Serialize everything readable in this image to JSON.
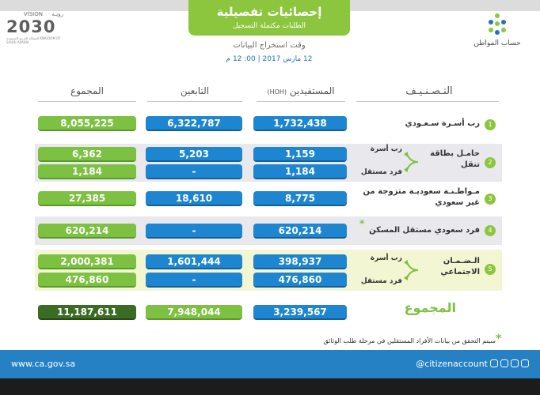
{
  "header": {
    "vision_ar": "رؤيـة",
    "vision_en": "VISION",
    "vision_year": "2030",
    "vision_sub": "المملكة العربية السعودية KINGDOM OF SAUDI ARABIA",
    "title": "إحصائيات تفصيلية",
    "subtitle": "الطلبات مكتملة التسجيل",
    "extract_label": "وقت استخراج البيانات",
    "extract_time": "12 مارس 2017 | 00: 12 م",
    "logo_name": "حساب المواطن"
  },
  "columns": {
    "category": "التـصـنـيـف",
    "beneficiaries": "المستفيدين",
    "beneficiaries_tag": "(HOH)",
    "dependents": "التابعين",
    "total": "المجموع"
  },
  "rows": [
    {
      "num": "1",
      "label": "رب أسـرة سـعـودي",
      "hoh": "1,732,438",
      "dep": "6,322,787",
      "total": "8,055,225"
    },
    {
      "num": "2",
      "label": "حامـل بطاقة تنقل",
      "sub1": "رب أسرة",
      "sub2": "فرد مستقل",
      "hoh1": "1,159",
      "dep1": "5,203",
      "total1": "6,362",
      "hoh2": "1,184",
      "dep2": "-",
      "total2": "1,184"
    },
    {
      "num": "3",
      "label": "مـواطـنـة سعوديـة متزوجة من غير سعودي",
      "hoh": "8,775",
      "dep": "18,610",
      "total": "27,385"
    },
    {
      "num": "4",
      "label": "فرد سعودي مستقل المسكن",
      "star": "*",
      "hoh": "620,214",
      "dep": "-",
      "total": "620,214"
    },
    {
      "num": "5",
      "label": "الـضـمـان الاجتماعي",
      "sub1": "رب أسرة",
      "sub2": "فرد مستقل",
      "hoh1": "398,937",
      "dep1": "1,601,444",
      "total1": "2,000,381",
      "hoh2": "476,860",
      "dep2": "-",
      "total2": "476,860"
    }
  ],
  "totals": {
    "label": "المجموع",
    "hoh": "3,239,567",
    "dep": "7,948,044",
    "total": "11,187,611"
  },
  "note": {
    "star": "*",
    "text": "سيتم التحقق من بيانات الأفراد المستقلين في مرحلة طلب الوثائق"
  },
  "footer": {
    "url": "www.ca.gov.sa",
    "handle": "@citizenaccount"
  },
  "colors": {
    "accent_green": "#8cc63f",
    "blue": "#1e86d0",
    "dark_green": "#3b6c24",
    "footer_blue": "#2581c4"
  }
}
